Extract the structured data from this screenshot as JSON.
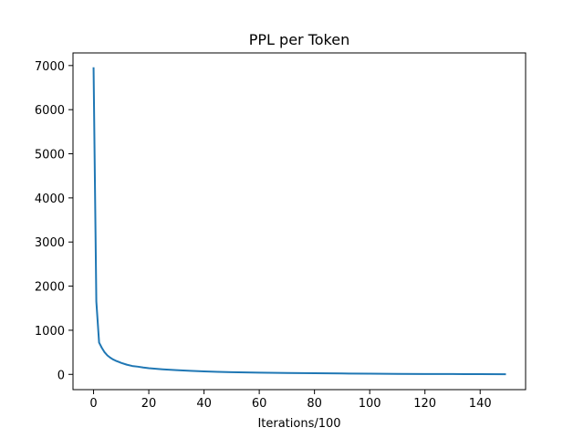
{
  "chart_data": {
    "type": "line",
    "title": "PPL per Token",
    "xlabel": "Iterations/100",
    "ylabel": "",
    "xlim": [
      -7.45,
      156.45
    ],
    "ylim": [
      -346,
      7286
    ],
    "xticks": [
      0,
      20,
      40,
      60,
      80,
      100,
      120,
      140
    ],
    "yticks": [
      0,
      1000,
      2000,
      3000,
      4000,
      5000,
      6000,
      7000
    ],
    "grid": false,
    "series": [
      {
        "color": "#1f77b4",
        "x": [
          0,
          1,
          2,
          3,
          4,
          5,
          6,
          7,
          8,
          9,
          10,
          12,
          14,
          16,
          18,
          20,
          25,
          30,
          35,
          40,
          45,
          50,
          60,
          70,
          80,
          90,
          100,
          110,
          120,
          130,
          140,
          149
        ],
        "y": [
          6940,
          1650,
          720,
          600,
          500,
          430,
          380,
          340,
          310,
          285,
          260,
          220,
          190,
          175,
          155,
          140,
          115,
          95,
          80,
          68,
          58,
          50,
          40,
          32,
          25,
          20,
          16,
          12,
          9,
          7,
          5,
          3
        ]
      }
    ]
  }
}
